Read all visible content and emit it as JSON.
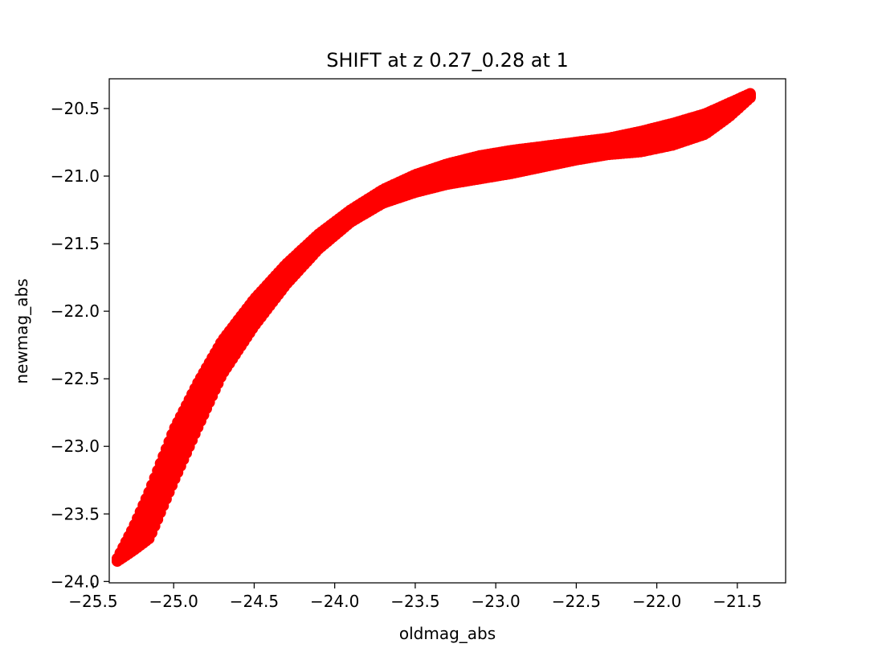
{
  "chart_data": {
    "type": "scatter",
    "title": "SHIFT at z 0.27_0.28 at 1",
    "xlabel": "oldmag_abs",
    "ylabel": "newmag_abs",
    "xlim": [
      -25.4,
      -21.2
    ],
    "ylim": [
      -24.01,
      -20.28
    ],
    "xticks": [
      -25.5,
      -25.0,
      -24.5,
      -24.0,
      -23.5,
      -23.0,
      -22.5,
      -22.0,
      -21.5
    ],
    "xtick_labels": [
      "−25.5",
      "−25.0",
      "−24.5",
      "−24.0",
      "−23.5",
      "−23.0",
      "−22.5",
      "−22.0",
      "−21.5"
    ],
    "yticks": [
      -24.0,
      -23.5,
      -23.0,
      -22.5,
      -22.0,
      -21.5,
      -21.0,
      -20.5
    ],
    "ytick_labels": [
      "−24.0",
      "−23.5",
      "−23.0",
      "−22.5",
      "−22.0",
      "−21.5",
      "−21.0",
      "−20.5"
    ],
    "grid": false,
    "series": [
      {
        "color": "#ff0000",
        "upper_edge": {
          "x": [
            -25.35,
            -25.25,
            -25.15,
            -25.0,
            -24.85,
            -24.7,
            -24.5,
            -24.3,
            -24.1,
            -23.9,
            -23.7,
            -23.5,
            -23.3,
            -23.1,
            -22.9,
            -22.7,
            -22.5,
            -22.3,
            -22.1,
            -21.9,
            -21.7,
            -21.55,
            -21.42
          ],
          "y": [
            -23.83,
            -23.6,
            -23.33,
            -22.88,
            -22.53,
            -22.22,
            -21.91,
            -21.65,
            -21.43,
            -21.25,
            -21.1,
            -20.99,
            -20.91,
            -20.85,
            -20.81,
            -20.78,
            -20.75,
            -20.72,
            -20.67,
            -20.61,
            -20.54,
            -20.46,
            -20.39
          ]
        },
        "lower_edge": {
          "x": [
            -25.35,
            -25.25,
            -25.15,
            -25.0,
            -24.85,
            -24.7,
            -24.5,
            -24.3,
            -24.1,
            -23.9,
            -23.7,
            -23.5,
            -23.3,
            -23.1,
            -22.9,
            -22.7,
            -22.5,
            -22.3,
            -22.1,
            -21.9,
            -21.7,
            -21.55,
            -21.42
          ],
          "y": [
            -23.85,
            -23.77,
            -23.68,
            -23.26,
            -22.86,
            -22.47,
            -22.11,
            -21.8,
            -21.54,
            -21.34,
            -21.2,
            -21.12,
            -21.06,
            -21.02,
            -20.98,
            -20.93,
            -20.88,
            -20.84,
            -20.82,
            -20.77,
            -20.69,
            -20.56,
            -20.42
          ]
        }
      }
    ]
  }
}
